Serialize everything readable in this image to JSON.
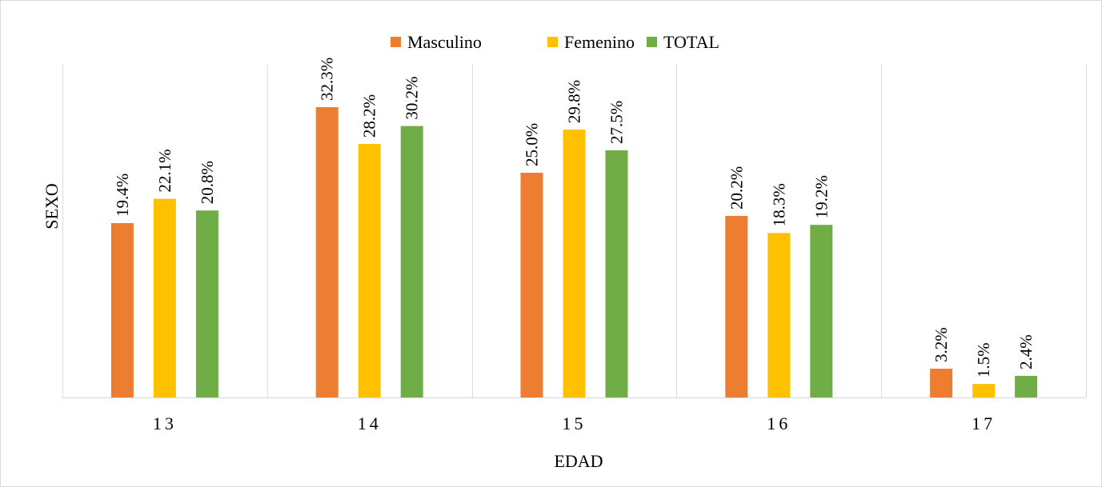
{
  "chart_data": {
    "type": "bar",
    "title": "",
    "xlabel": "EDAD",
    "ylabel": "SEXO",
    "categories": [
      "13",
      "14",
      "15",
      "16",
      "17"
    ],
    "series": [
      {
        "name": "Masculino",
        "color": "#ED7D31",
        "values": [
          19.4,
          32.3,
          25.0,
          20.2,
          3.2
        ],
        "labels": [
          "19.4%",
          "32.3%",
          "25.0%",
          "20.2%",
          "3.2%"
        ]
      },
      {
        "name": "Femenino",
        "color": "#FFC000",
        "values": [
          22.1,
          28.2,
          29.8,
          18.3,
          1.5
        ],
        "labels": [
          "22.1%",
          "28.2%",
          "29.8%",
          "18.3%",
          "1.5%"
        ]
      },
      {
        "name": "TOTAL",
        "color": "#70AD47",
        "values": [
          20.8,
          30.2,
          27.5,
          19.2,
          2.4
        ],
        "labels": [
          "20.8%",
          "30.2%",
          "27.5%",
          "19.2%",
          "2.4%"
        ]
      }
    ],
    "ylim": [
      0,
      32.3
    ],
    "grid": "vertical category separators",
    "legend_position": "top"
  }
}
